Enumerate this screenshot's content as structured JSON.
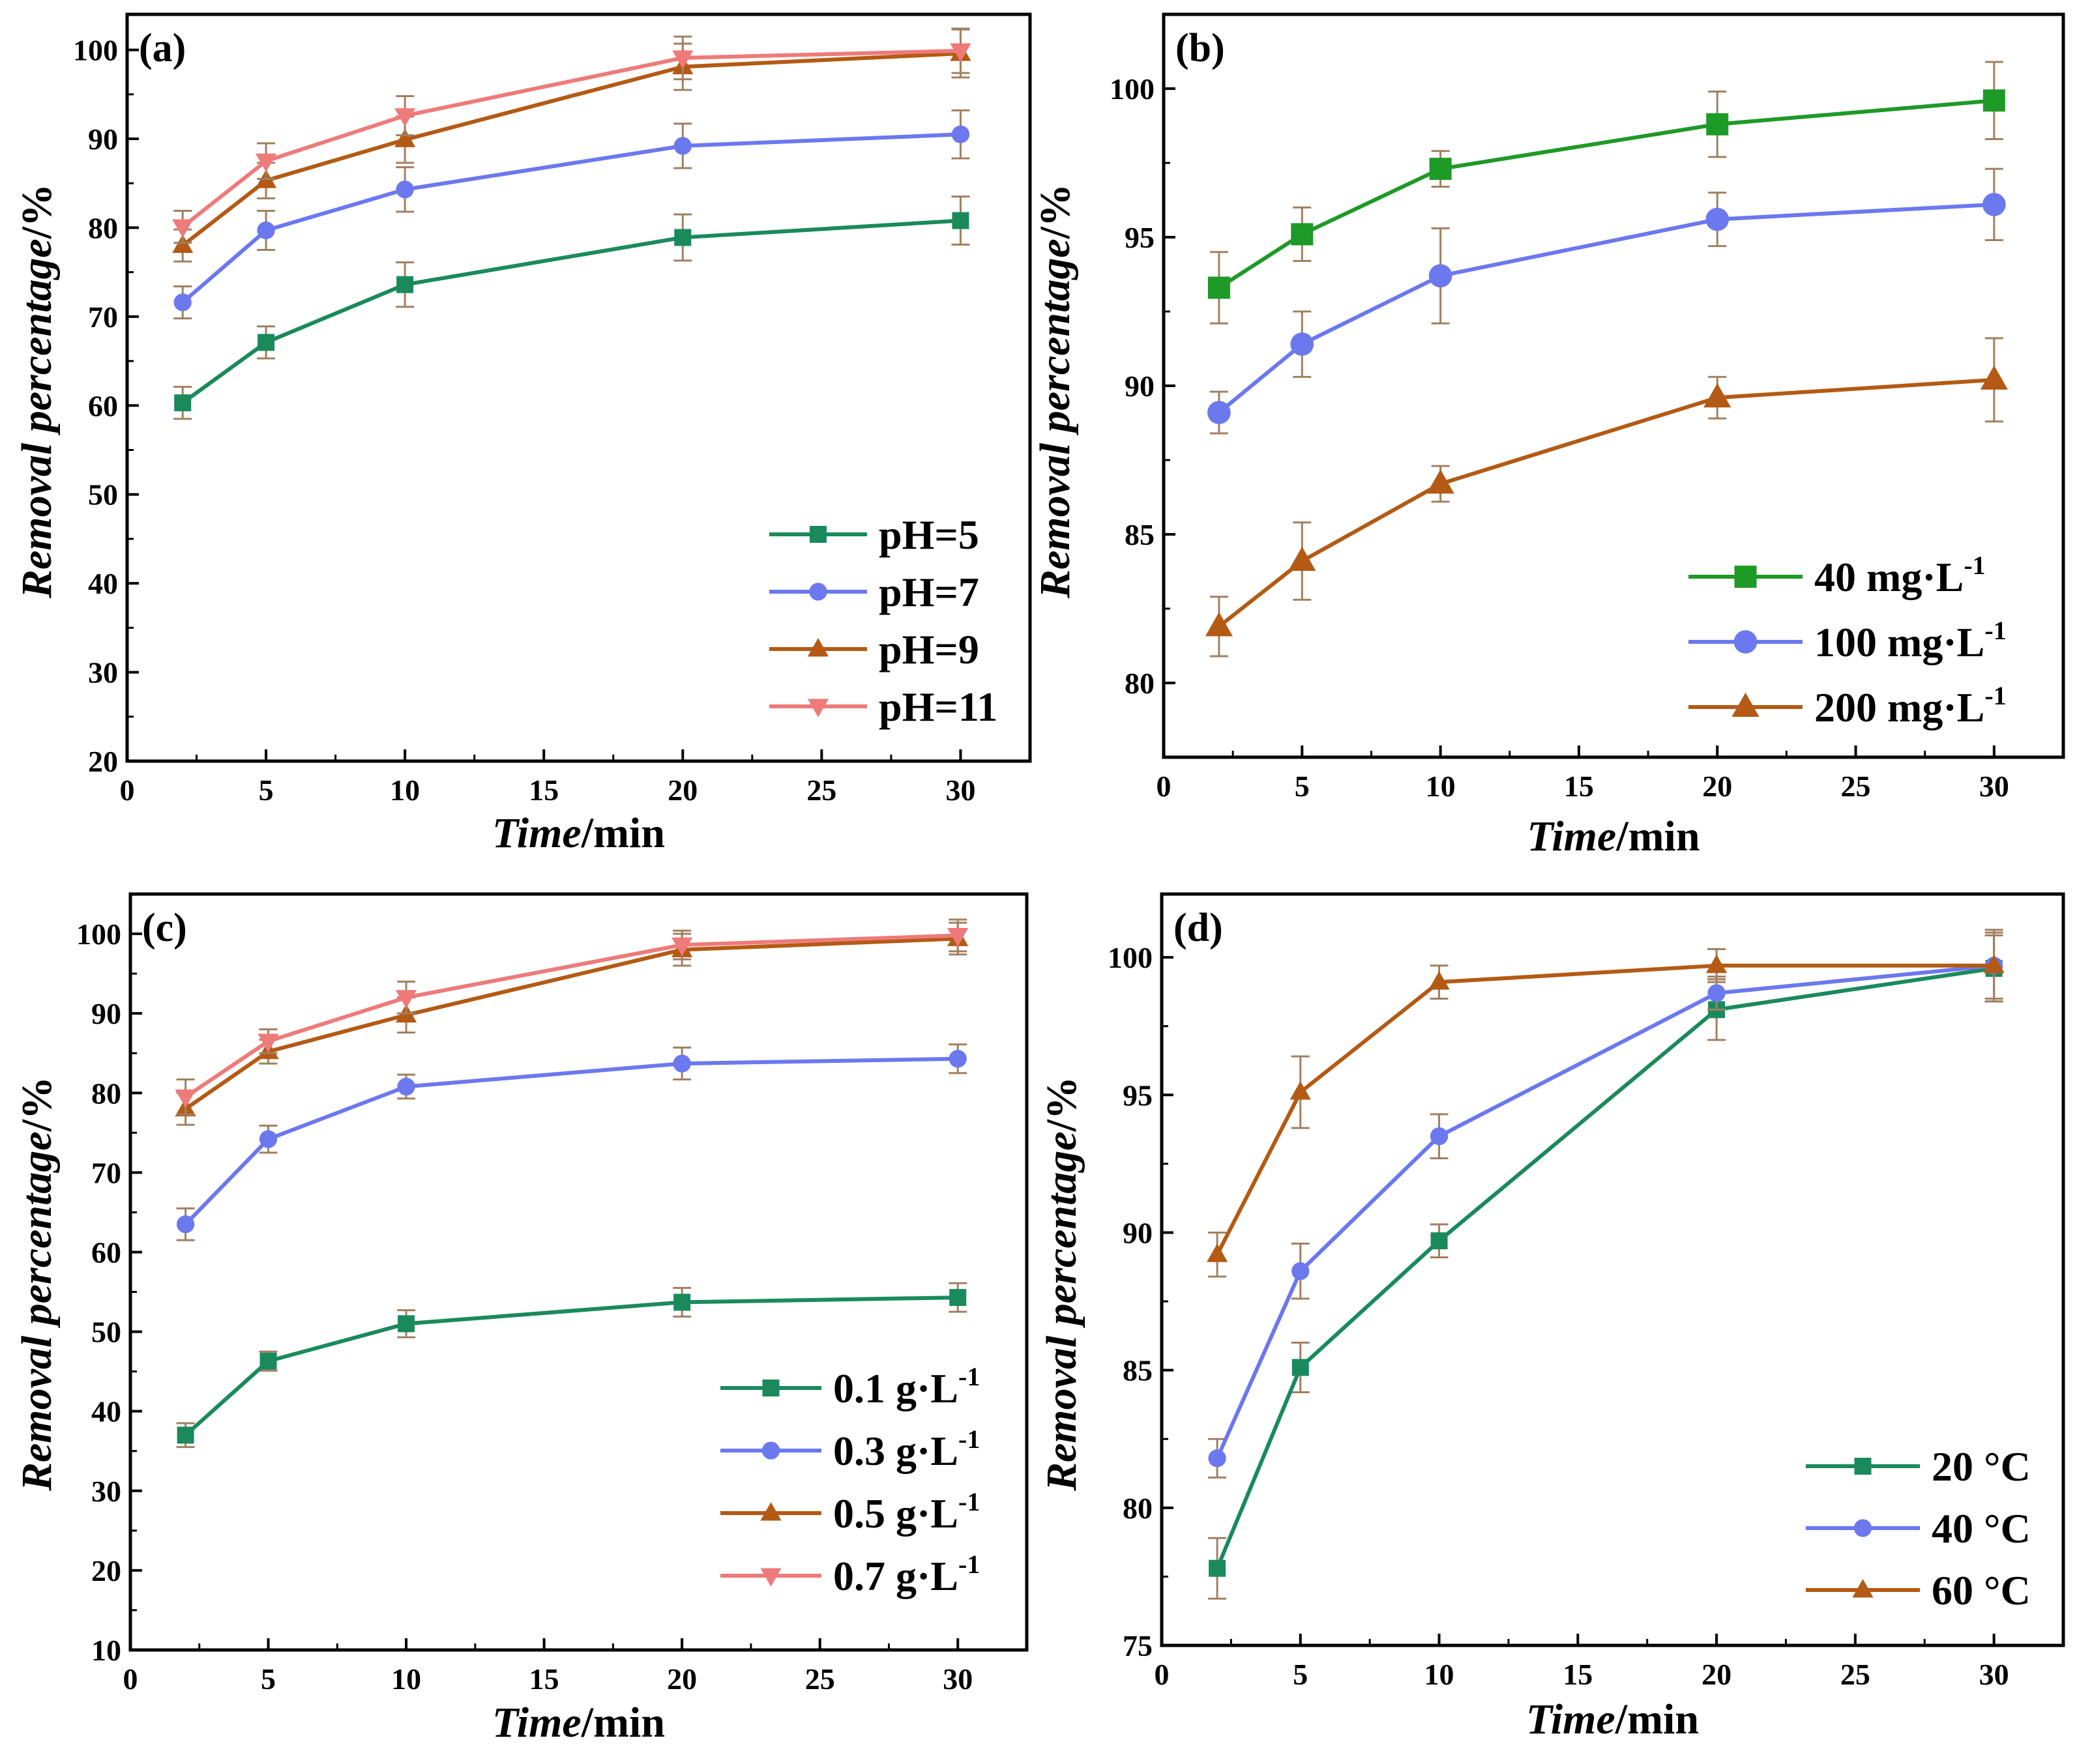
{
  "colors": {
    "green": "#1a8a5c",
    "blue": "#6b78ee",
    "brown": "#b45a14",
    "pink": "#ee7a7a",
    "green_b": "#1e9a26",
    "errbar": "#a08060"
  },
  "chart_data": [
    {
      "type": "line",
      "panel_label": "(a)",
      "xlabel_italic": "Time",
      "xlabel_unit": "/min",
      "ylabel_italic": "Removal percentage",
      "ylabel_unit": "/%",
      "xlim": [
        0,
        32.5
      ],
      "ylim": [
        20,
        104
      ],
      "xticks": [
        0,
        5,
        10,
        15,
        20,
        25,
        30
      ],
      "yticks": [
        20,
        30,
        40,
        50,
        60,
        70,
        80,
        90,
        100
      ],
      "legend_position": "bottom-right",
      "x": [
        2,
        5,
        10,
        20,
        30
      ],
      "series": [
        {
          "name": "pH=5",
          "color": "#1a8a5c",
          "marker": "square",
          "values": [
            60.3,
            67.1,
            73.6,
            78.9,
            80.8
          ],
          "errors": [
            1.8,
            1.8,
            2.5,
            2.6,
            2.7
          ]
        },
        {
          "name": "pH=7",
          "color": "#6b78ee",
          "marker": "circle",
          "values": [
            71.6,
            79.7,
            84.3,
            89.2,
            90.5
          ],
          "errors": [
            1.8,
            2.2,
            2.5,
            2.5,
            2.7
          ]
        },
        {
          "name": "pH=9",
          "color": "#b45a14",
          "marker": "triangle",
          "values": [
            78.0,
            85.3,
            89.9,
            98.1,
            99.6
          ],
          "errors": [
            1.8,
            2.0,
            2.6,
            2.6,
            2.7
          ]
        },
        {
          "name": "pH=11",
          "color": "#ee7a7a",
          "marker": "tri-down",
          "values": [
            80.1,
            87.5,
            92.6,
            99.1,
            99.9
          ],
          "errors": [
            1.8,
            2.0,
            2.2,
            2.4,
            2.5
          ]
        }
      ]
    },
    {
      "type": "line",
      "panel_label": "(b)",
      "xlabel_italic": "Time",
      "xlabel_unit": "/min",
      "ylabel_italic": "Removal percentage",
      "ylabel_unit": "/%",
      "xlim": [
        0,
        32.5
      ],
      "ylim": [
        77.5,
        102.5
      ],
      "xticks": [
        0,
        5,
        10,
        15,
        20,
        25,
        30
      ],
      "yticks": [
        80,
        85,
        90,
        95,
        100
      ],
      "legend_position": "bottom-right",
      "x": [
        2,
        5,
        10,
        20,
        30
      ],
      "series": [
        {
          "name": "40 mg·L",
          "sup": "-1",
          "color": "#1e9a26",
          "marker": "square",
          "values": [
            93.3,
            95.1,
            97.3,
            98.8,
            99.6
          ],
          "errors": [
            1.2,
            0.9,
            0.6,
            1.1,
            1.3
          ]
        },
        {
          "name": "100 mg·L",
          "sup": "-1",
          "color": "#6b78ee",
          "marker": "circle",
          "values": [
            89.1,
            91.4,
            93.7,
            95.6,
            96.1
          ],
          "errors": [
            0.7,
            1.1,
            1.6,
            0.9,
            1.2
          ]
        },
        {
          "name": "200 mg·L",
          "sup": "-1",
          "color": "#b45a14",
          "marker": "triangle",
          "values": [
            81.9,
            84.1,
            86.7,
            89.6,
            90.2
          ],
          "errors": [
            1.0,
            1.3,
            0.6,
            0.7,
            1.4
          ]
        }
      ]
    },
    {
      "type": "line",
      "panel_label": "(c)",
      "xlabel_italic": "Time",
      "xlabel_unit": "/min",
      "ylabel_italic": "Removal percentage",
      "ylabel_unit": "/%",
      "xlim": [
        0,
        32.5
      ],
      "ylim": [
        10,
        105
      ],
      "xticks": [
        0,
        5,
        10,
        15,
        20,
        25,
        30
      ],
      "yticks": [
        10,
        20,
        30,
        40,
        50,
        60,
        70,
        80,
        90,
        100
      ],
      "legend_position": "bottom-right",
      "x": [
        2,
        5,
        10,
        20,
        30
      ],
      "series": [
        {
          "name": "0.1 g·L",
          "sup": "-1",
          "color": "#1a8a5c",
          "marker": "square",
          "values": [
            37.0,
            46.3,
            51.0,
            53.7,
            54.3
          ],
          "errors": [
            1.5,
            1.2,
            1.7,
            1.8,
            1.8
          ]
        },
        {
          "name": "0.3 g·L",
          "sup": "-1",
          "color": "#6b78ee",
          "marker": "circle",
          "values": [
            63.5,
            74.2,
            80.8,
            83.7,
            84.3
          ],
          "errors": [
            2.0,
            1.7,
            1.5,
            2.0,
            1.8
          ]
        },
        {
          "name": "0.5 g·L",
          "sup": "-1",
          "color": "#b45a14",
          "marker": "triangle",
          "values": [
            78.0,
            85.2,
            89.8,
            98.0,
            99.4
          ],
          "errors": [
            2.0,
            1.5,
            2.2,
            2.0,
            2.0
          ]
        },
        {
          "name": "0.7 g·L",
          "sup": "-1",
          "color": "#ee7a7a",
          "marker": "tri-down",
          "values": [
            79.5,
            86.5,
            92.0,
            98.6,
            99.8
          ],
          "errors": [
            2.2,
            1.5,
            2.0,
            1.8,
            2.0
          ]
        }
      ]
    },
    {
      "type": "line",
      "panel_label": "(d)",
      "xlabel_italic": "Time",
      "xlabel_unit": "/min",
      "ylabel_italic": "Removal percentage",
      "ylabel_unit": "/%",
      "xlim": [
        0,
        32.5
      ],
      "ylim": [
        75,
        102.3
      ],
      "xticks": [
        0,
        5,
        10,
        15,
        20,
        25,
        30
      ],
      "yticks": [
        75,
        80,
        85,
        90,
        95,
        100
      ],
      "legend_position": "bottom-right",
      "x": [
        2,
        5,
        10,
        20,
        30
      ],
      "series": [
        {
          "name": "20 °C",
          "color": "#1a8a5c",
          "marker": "square",
          "values": [
            77.8,
            85.1,
            89.7,
            98.1,
            99.6
          ],
          "errors": [
            1.1,
            0.9,
            0.6,
            1.1,
            1.2
          ]
        },
        {
          "name": "40 °C",
          "color": "#6b78ee",
          "marker": "circle",
          "values": [
            81.8,
            88.6,
            93.5,
            98.7,
            99.7
          ],
          "errors": [
            0.7,
            1.0,
            0.8,
            0.6,
            1.3
          ]
        },
        {
          "name": "60 °C",
          "color": "#b45a14",
          "marker": "triangle",
          "values": [
            89.2,
            95.1,
            99.1,
            99.7,
            99.7
          ],
          "errors": [
            0.8,
            1.3,
            0.6,
            0.6,
            1.2
          ]
        }
      ]
    }
  ]
}
